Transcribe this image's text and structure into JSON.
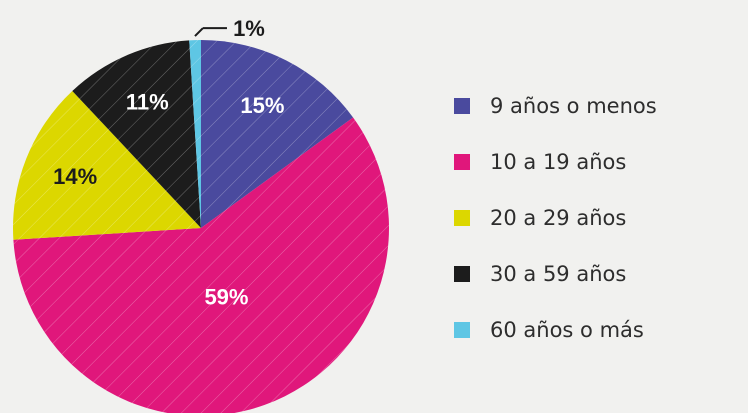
{
  "chart_data": {
    "type": "pie",
    "categories": [
      "9 años o menos",
      "10 a 19 años",
      "20 a 29 años",
      "30 a 59 años",
      "60 años o más"
    ],
    "values": [
      15,
      59,
      14,
      11,
      1
    ],
    "value_labels": [
      "15%",
      "59%",
      "14%",
      "11%",
      "1%"
    ],
    "colors": [
      "#4a4a9e",
      "#e0177b",
      "#dcd700",
      "#1c1c1c",
      "#5ec6e4"
    ],
    "legend": "right"
  }
}
